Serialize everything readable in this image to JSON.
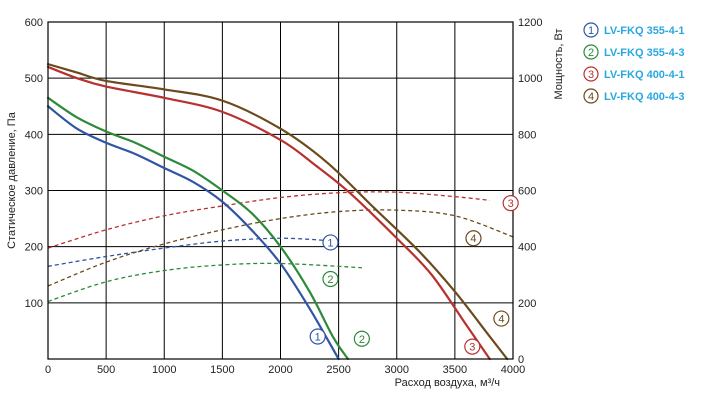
{
  "chart_data": {
    "type": "line",
    "xlabel": "Расход воздуха, м³/ч",
    "ylabel_left": "Статическое давление, Па",
    "ylabel_right": "Мощность, Вт",
    "xlim": [
      0,
      4000
    ],
    "ylim_left": [
      0,
      600
    ],
    "ylim_right": [
      0,
      1200
    ],
    "x_ticks": [
      0,
      500,
      1000,
      1500,
      2000,
      2500,
      3000,
      3500,
      4000
    ],
    "y_left_ticks": [
      100,
      200,
      300,
      400,
      500,
      600
    ],
    "y_right_ticks": [
      0,
      200,
      400,
      600,
      800,
      1000,
      1200
    ],
    "x_tick_labels": [
      "0",
      "500",
      "1000",
      "1500",
      "2000",
      "2500",
      "3000",
      "3500",
      "4000"
    ],
    "y_left_tick_labels": [
      "100",
      "200",
      "300",
      "400",
      "500",
      "600"
    ],
    "y_right_tick_labels": [
      "0",
      "200",
      "400",
      "600",
      "800",
      "1000",
      "1200"
    ],
    "grid": true,
    "legend_position": "top-right",
    "series": [
      {
        "name": "LV-FKQ 355-4-1",
        "marker": "1",
        "color": "#2f55a4",
        "pressure": [
          [
            0,
            450
          ],
          [
            250,
            410
          ],
          [
            500,
            385
          ],
          [
            750,
            365
          ],
          [
            1000,
            340
          ],
          [
            1250,
            315
          ],
          [
            1500,
            280
          ],
          [
            1750,
            230
          ],
          [
            2000,
            170
          ],
          [
            2250,
            90
          ],
          [
            2500,
            0
          ]
        ],
        "power": [
          [
            0,
            330
          ],
          [
            500,
            365
          ],
          [
            1000,
            395
          ],
          [
            1500,
            420
          ],
          [
            2000,
            430
          ],
          [
            2400,
            422
          ]
        ]
      },
      {
        "name": "LV-FKQ 355-4-3",
        "marker": "2",
        "color": "#2d8a3a",
        "pressure": [
          [
            0,
            465
          ],
          [
            250,
            430
          ],
          [
            500,
            405
          ],
          [
            750,
            385
          ],
          [
            1000,
            360
          ],
          [
            1250,
            335
          ],
          [
            1500,
            300
          ],
          [
            1750,
            260
          ],
          [
            2000,
            200
          ],
          [
            2250,
            120
          ],
          [
            2450,
            40
          ],
          [
            2580,
            0
          ]
        ],
        "power": [
          [
            0,
            205
          ],
          [
            500,
            275
          ],
          [
            1000,
            315
          ],
          [
            1500,
            335
          ],
          [
            2000,
            340
          ],
          [
            2700,
            325
          ]
        ]
      },
      {
        "name": "LV-FKQ 400-4-1",
        "marker": "3",
        "color": "#b8312f",
        "pressure": [
          [
            0,
            520
          ],
          [
            250,
            500
          ],
          [
            500,
            485
          ],
          [
            1000,
            465
          ],
          [
            1500,
            440
          ],
          [
            2000,
            390
          ],
          [
            2300,
            345
          ],
          [
            2600,
            295
          ],
          [
            3000,
            215
          ],
          [
            3300,
            150
          ],
          [
            3600,
            60
          ],
          [
            3800,
            0
          ]
        ],
        "power": [
          [
            0,
            395
          ],
          [
            500,
            460
          ],
          [
            1000,
            510
          ],
          [
            1500,
            545
          ],
          [
            2000,
            575
          ],
          [
            2500,
            592
          ],
          [
            3000,
            594
          ],
          [
            3500,
            578
          ],
          [
            3800,
            565
          ]
        ]
      },
      {
        "name": "LV-FKQ 400-4-3",
        "marker": "4",
        "color": "#6b4a1c",
        "pressure": [
          [
            0,
            525
          ],
          [
            250,
            510
          ],
          [
            500,
            495
          ],
          [
            1000,
            480
          ],
          [
            1500,
            460
          ],
          [
            2000,
            410
          ],
          [
            2400,
            350
          ],
          [
            2800,
            270
          ],
          [
            3200,
            190
          ],
          [
            3500,
            120
          ],
          [
            3800,
            40
          ],
          [
            3950,
            0
          ]
        ],
        "power": [
          [
            0,
            260
          ],
          [
            500,
            345
          ],
          [
            1000,
            410
          ],
          [
            1500,
            460
          ],
          [
            2000,
            500
          ],
          [
            2500,
            525
          ],
          [
            3000,
            530
          ],
          [
            3500,
            510
          ],
          [
            4000,
            435
          ]
        ]
      }
    ]
  }
}
